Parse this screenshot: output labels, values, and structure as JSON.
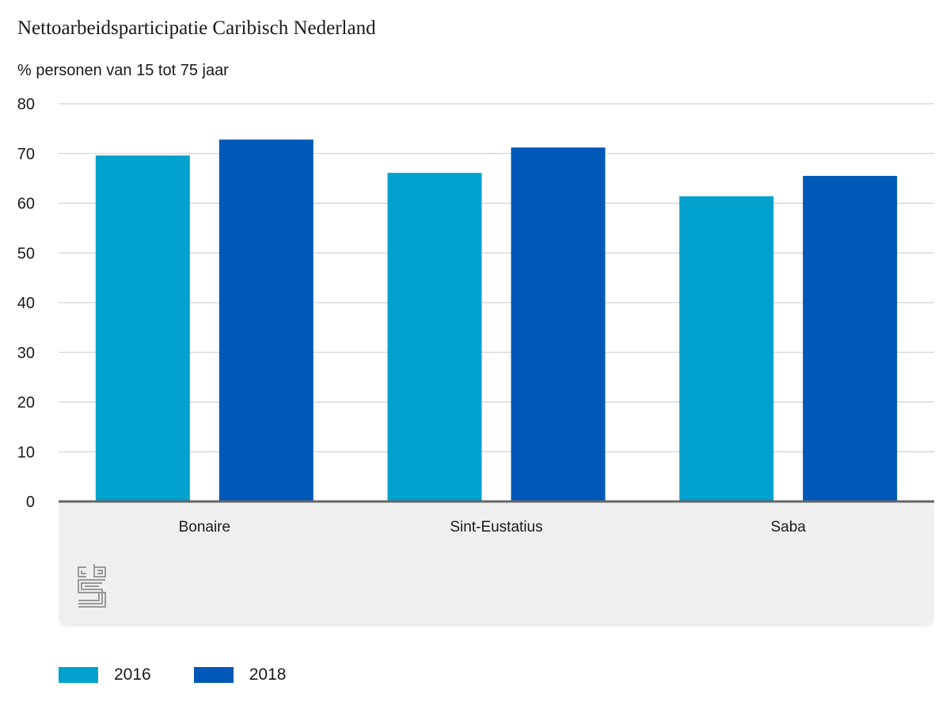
{
  "colors": {
    "series_2016": "#00a1cd",
    "series_2018": "#0058b8",
    "grid": "#c8c8c8",
    "axis": "#666666",
    "panel": "#efefef",
    "logo": "#999999"
  },
  "logo_icon": "cbs-logo-icon",
  "chart_data": {
    "type": "bar",
    "title": "Nettoarbeidsparticipatie Caribisch Nederland",
    "subtitle": "% personen van 15 tot 75 jaar",
    "categories": [
      "Bonaire",
      "Sint-Eustatius",
      "Saba"
    ],
    "series": [
      {
        "name": "2016",
        "values": [
          69.6,
          66.1,
          61.4
        ]
      },
      {
        "name": "2018",
        "values": [
          72.8,
          71.2,
          65.5
        ]
      }
    ],
    "ylim": [
      0,
      80
    ],
    "yticks": [
      0,
      10,
      20,
      30,
      40,
      50,
      60,
      70,
      80
    ],
    "xlabel": "",
    "ylabel": "",
    "grid": true,
    "legend": "bottom-left"
  }
}
